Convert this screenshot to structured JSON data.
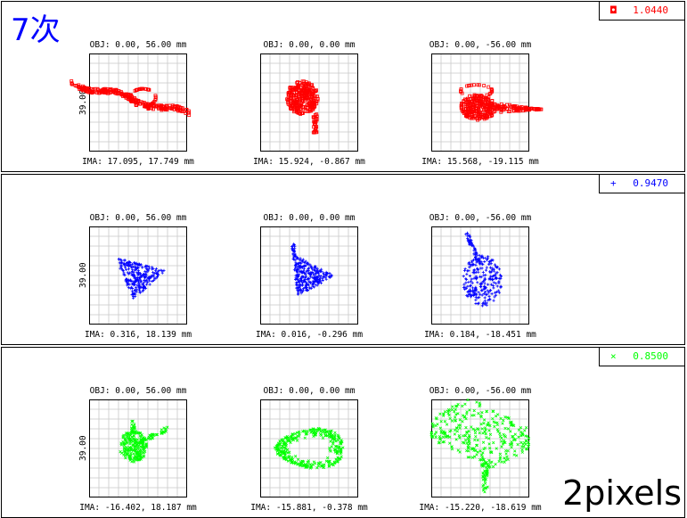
{
  "title": "7次",
  "footer_label": "2pixels",
  "y_axis_label": "39.00",
  "chart_data": [
    {
      "type": "scatter",
      "panel": "top",
      "color": "#ff0000",
      "marker": "square",
      "legend": {
        "symbol": "◘",
        "value": "1.0440"
      },
      "plots": [
        {
          "obj": "OBJ: 0.00, 56.00 mm",
          "ima": "IMA: 17.095, 17.749 mm",
          "shape": "streak"
        },
        {
          "obj": "OBJ: 0.00, 0.00 mm",
          "ima": "IMA: 15.924, -0.867 mm",
          "shape": "blob"
        },
        {
          "obj": "OBJ: 0.00, -56.00 mm",
          "ima": "IMA: 15.568, -19.115 mm",
          "shape": "comet"
        }
      ]
    },
    {
      "type": "scatter",
      "panel": "middle",
      "color": "#0000ff",
      "marker": "plus",
      "legend": {
        "symbol": "+",
        "value": "0.9470"
      },
      "plots": [
        {
          "obj": "OBJ: 0.00, 56.00 mm",
          "ima": "IMA: 0.316, 18.139 mm",
          "shape": "triangle"
        },
        {
          "obj": "OBJ: 0.00, 0.00 mm",
          "ima": "IMA: 0.016, -0.296 mm",
          "shape": "triangle2"
        },
        {
          "obj": "OBJ: 0.00, -56.00 mm",
          "ima": "IMA: 0.184, -18.451 mm",
          "shape": "hook"
        }
      ]
    },
    {
      "type": "scatter",
      "panel": "bottom",
      "color": "#00ff00",
      "marker": "x",
      "legend": {
        "symbol": "×",
        "value": "0.8500"
      },
      "plots": [
        {
          "obj": "OBJ: 0.00, 56.00 mm",
          "ima": "IMA: -16.402, 18.187 mm",
          "shape": "star"
        },
        {
          "obj": "OBJ: 0.00, 0.00 mm",
          "ima": "IMA: -15.881, -0.378 mm",
          "shape": "lens"
        },
        {
          "obj": "OBJ: 0.00, -56.00 mm",
          "ima": "IMA: -15.220, -18.619 mm",
          "shape": "butterfly"
        }
      ]
    }
  ]
}
